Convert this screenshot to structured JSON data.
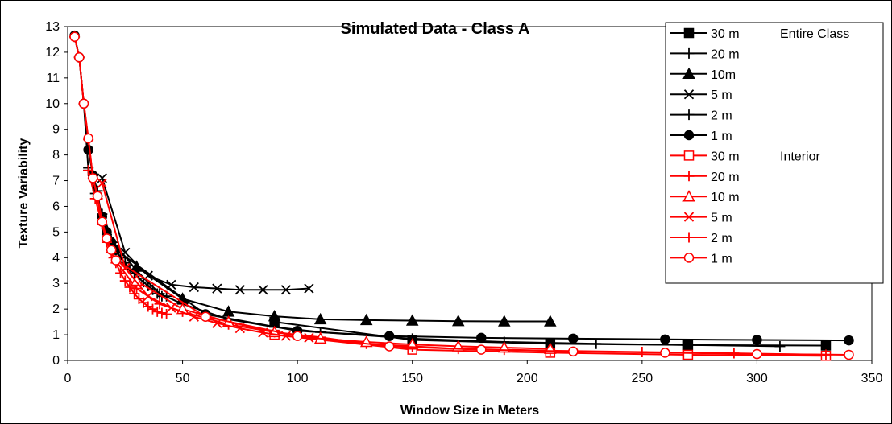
{
  "chart_data": {
    "type": "line",
    "title": "Simulated Data - Class A",
    "xlabel": "Window Size in Meters",
    "ylabel": "Texture Variability",
    "xlim": [
      0,
      350
    ],
    "ylim": [
      0,
      13
    ],
    "xticks": [
      "0",
      "50",
      "100",
      "150",
      "200",
      "250",
      "300",
      "350"
    ],
    "yticks": [
      "0",
      "1",
      "2",
      "3",
      "4",
      "5",
      "6",
      "7",
      "8",
      "9",
      "10",
      "11",
      "12",
      "13"
    ],
    "grid": false,
    "legend_position": "top-right",
    "legend_group_labels": [
      "Entire Class",
      "Interior"
    ],
    "series": [
      {
        "name": "30 m",
        "group": "Entire Class",
        "color": "#000000",
        "marker": "square-filled",
        "points": [
          [
            90,
            1.5
          ],
          [
            150,
            0.8
          ],
          [
            210,
            0.65
          ],
          [
            270,
            0.6
          ],
          [
            330,
            0.58
          ]
        ]
      },
      {
        "name": "20 m",
        "group": "Entire Class",
        "color": "#000000",
        "marker": "plus",
        "points": [
          [
            9,
            7.5
          ],
          [
            12,
            6.5
          ],
          [
            15,
            5.7
          ],
          [
            20,
            4.6
          ],
          [
            30,
            3.5
          ],
          [
            40,
            2.6
          ],
          [
            50,
            2.2
          ],
          [
            70,
            1.6
          ],
          [
            90,
            1.3
          ],
          [
            110,
            1.1
          ],
          [
            150,
            0.85
          ],
          [
            190,
            0.72
          ],
          [
            230,
            0.65
          ],
          [
            270,
            0.6
          ],
          [
            310,
            0.55
          ]
        ]
      },
      {
        "name": "10m",
        "group": "Entire Class",
        "color": "#000000",
        "marker": "triangle-filled",
        "points": [
          [
            30,
            3.65
          ],
          [
            50,
            2.4
          ],
          [
            70,
            1.9
          ],
          [
            90,
            1.72
          ],
          [
            110,
            1.6
          ],
          [
            130,
            1.57
          ],
          [
            150,
            1.55
          ],
          [
            170,
            1.53
          ],
          [
            190,
            1.52
          ],
          [
            210,
            1.52
          ]
        ]
      },
      {
        "name": "5 m",
        "group": "Entire Class",
        "color": "#000000",
        "marker": "x",
        "points": [
          [
            15,
            7.1
          ],
          [
            25,
            4.2
          ],
          [
            35,
            3.3
          ],
          [
            45,
            2.95
          ],
          [
            55,
            2.85
          ],
          [
            65,
            2.8
          ],
          [
            75,
            2.75
          ],
          [
            85,
            2.75
          ],
          [
            95,
            2.75
          ],
          [
            105,
            2.8
          ]
        ]
      },
      {
        "name": "2 m",
        "group": "Entire Class",
        "color": "#000000",
        "marker": "plus",
        "points": [
          [
            3,
            12.6
          ],
          [
            5,
            11.8
          ],
          [
            7,
            10.0
          ],
          [
            9,
            7.4
          ],
          [
            11,
            7.2
          ],
          [
            13,
            6.6
          ],
          [
            15,
            5.3
          ],
          [
            17,
            4.9
          ],
          [
            19,
            4.6
          ],
          [
            21,
            4.3
          ],
          [
            23,
            4.0
          ],
          [
            25,
            3.8
          ],
          [
            27,
            3.55
          ],
          [
            29,
            3.4
          ],
          [
            31,
            3.2
          ],
          [
            33,
            3.05
          ],
          [
            35,
            2.9
          ],
          [
            37,
            2.75
          ],
          [
            39,
            2.6
          ],
          [
            41,
            2.5
          ],
          [
            43,
            2.5
          ]
        ]
      },
      {
        "name": "1 m",
        "group": "Entire Class",
        "color": "#000000",
        "marker": "circle-filled",
        "points": [
          [
            3,
            12.65
          ],
          [
            5,
            11.8
          ],
          [
            7,
            10.0
          ],
          [
            9,
            8.2
          ],
          [
            11,
            7.2
          ],
          [
            13,
            6.4
          ],
          [
            15,
            5.6
          ],
          [
            17,
            5.0
          ],
          [
            19,
            4.6
          ],
          [
            21,
            4.3
          ],
          [
            60,
            1.8
          ],
          [
            100,
            1.15
          ],
          [
            140,
            0.95
          ],
          [
            180,
            0.88
          ],
          [
            220,
            0.85
          ],
          [
            260,
            0.82
          ],
          [
            300,
            0.8
          ],
          [
            340,
            0.78
          ]
        ]
      },
      {
        "name": "30 m",
        "group": "Interior",
        "color": "#ff0000",
        "marker": "square-open",
        "points": [
          [
            90,
            1.0
          ],
          [
            150,
            0.42
          ],
          [
            210,
            0.3
          ],
          [
            270,
            0.22
          ],
          [
            330,
            0.18
          ]
        ]
      },
      {
        "name": "20 m",
        "group": "Interior",
        "color": "#ff0000",
        "marker": "plus",
        "points": [
          [
            9,
            7.4
          ],
          [
            12,
            6.3
          ],
          [
            15,
            5.3
          ],
          [
            20,
            4.0
          ],
          [
            30,
            2.8
          ],
          [
            40,
            2.2
          ],
          [
            50,
            1.9
          ],
          [
            70,
            1.4
          ],
          [
            90,
            1.1
          ],
          [
            110,
            0.9
          ],
          [
            130,
            0.65
          ],
          [
            150,
            0.55
          ],
          [
            170,
            0.45
          ],
          [
            190,
            0.42
          ],
          [
            210,
            0.38
          ],
          [
            250,
            0.33
          ],
          [
            290,
            0.28
          ],
          [
            330,
            0.22
          ]
        ]
      },
      {
        "name": "10 m",
        "group": "Interior",
        "color": "#ff0000",
        "marker": "triangle-open",
        "points": [
          [
            30,
            3.1
          ],
          [
            50,
            2.0
          ],
          [
            70,
            1.5
          ],
          [
            90,
            1.1
          ],
          [
            110,
            0.85
          ],
          [
            130,
            0.72
          ],
          [
            150,
            0.62
          ],
          [
            170,
            0.55
          ],
          [
            190,
            0.5
          ],
          [
            210,
            0.45
          ]
        ]
      },
      {
        "name": "5 m",
        "group": "Interior",
        "color": "#ff0000",
        "marker": "x",
        "points": [
          [
            15,
            6.9
          ],
          [
            25,
            3.6
          ],
          [
            35,
            2.5
          ],
          [
            45,
            2.05
          ],
          [
            55,
            1.7
          ],
          [
            65,
            1.45
          ],
          [
            75,
            1.25
          ],
          [
            85,
            1.08
          ],
          [
            95,
            0.95
          ],
          [
            105,
            0.88
          ]
        ]
      },
      {
        "name": "2 m",
        "group": "Interior",
        "color": "#ff0000",
        "marker": "plus",
        "points": [
          [
            3,
            12.6
          ],
          [
            5,
            11.8
          ],
          [
            7,
            10.0
          ],
          [
            9,
            8.6
          ],
          [
            11,
            7.1
          ],
          [
            13,
            6.3
          ],
          [
            15,
            5.3
          ],
          [
            17,
            4.6
          ],
          [
            19,
            4.2
          ],
          [
            21,
            3.8
          ],
          [
            23,
            3.4
          ],
          [
            25,
            3.1
          ],
          [
            27,
            2.85
          ],
          [
            29,
            2.6
          ],
          [
            31,
            2.4
          ],
          [
            33,
            2.25
          ],
          [
            35,
            2.1
          ],
          [
            37,
            2.0
          ],
          [
            39,
            1.9
          ],
          [
            41,
            1.85
          ],
          [
            43,
            1.8
          ]
        ]
      },
      {
        "name": "1 m",
        "group": "Interior",
        "color": "#ff0000",
        "marker": "circle-open",
        "points": [
          [
            3,
            12.6
          ],
          [
            5,
            11.8
          ],
          [
            7,
            10.0
          ],
          [
            9,
            8.65
          ],
          [
            11,
            7.1
          ],
          [
            13,
            6.4
          ],
          [
            15,
            5.4
          ],
          [
            17,
            4.75
          ],
          [
            19,
            4.3
          ],
          [
            21,
            3.9
          ],
          [
            60,
            1.7
          ],
          [
            100,
            0.95
          ],
          [
            140,
            0.55
          ],
          [
            180,
            0.42
          ],
          [
            220,
            0.35
          ],
          [
            260,
            0.3
          ],
          [
            300,
            0.25
          ],
          [
            340,
            0.22
          ]
        ]
      }
    ]
  }
}
